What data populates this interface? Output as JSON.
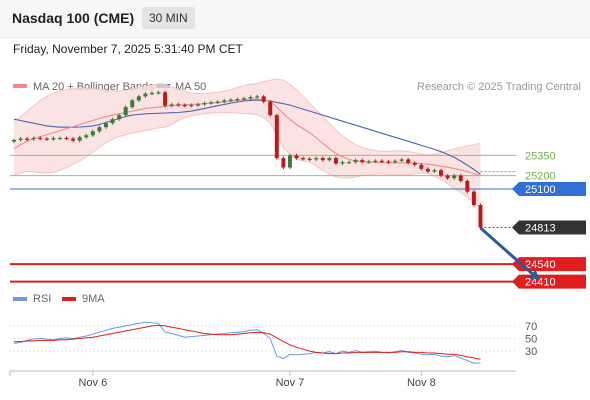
{
  "header": {
    "title": "Nasdaq 100 (CME)",
    "timeframe": "30 MIN"
  },
  "datetime": "Friday, November 7, 2025 5:31:40 PM CET",
  "legend": {
    "ma20_bb": "MA 20 + Bollinger Bands",
    "ma50": "MA 50",
    "rsi": "RSI",
    "ma9": "9MA",
    "copyright": "Research © 2025 Trading Central"
  },
  "colors": {
    "bb_fill": "#fadcdc",
    "ma20": "#f08a8a",
    "ma50": "#4a66b0",
    "candle_up": "#3a7a3a",
    "candle_down": "#c01818",
    "green_level": "#8fc470",
    "blue_level": "#2f6fd6",
    "red_level": "#e01e1e",
    "current": "#333333",
    "rsi": "#6b9ae0",
    "rsi_ma": "#e01e1e",
    "arrow": "#2a5aa0"
  },
  "chart_data": [
    {
      "type": "candlestick",
      "ylim": [
        24385,
        25800
      ],
      "x_labels": [
        "Nov 6",
        "Nov 7",
        "Nov 8"
      ],
      "x_label_index": [
        12,
        42,
        62
      ],
      "levels": [
        {
          "label": "25350",
          "value": 25350,
          "kind": "resistance"
        },
        {
          "label": "25200",
          "value": 25200,
          "kind": "resistance"
        },
        {
          "label": "25100",
          "value": 25100,
          "kind": "pivot"
        },
        {
          "label": "24540",
          "value": 24540,
          "kind": "support"
        },
        {
          "label": "24410",
          "value": 24410,
          "kind": "support"
        }
      ],
      "current": {
        "label": "24813",
        "value": 24813
      },
      "arrow": {
        "from": [
          71,
          24810
        ],
        "to": [
          80,
          24420
        ]
      },
      "close": [
        25465,
        25475,
        25470,
        25480,
        25475,
        25470,
        25480,
        25480,
        25475,
        25460,
        25485,
        25500,
        25530,
        25560,
        25590,
        25620,
        25650,
        25710,
        25760,
        25790,
        25810,
        25815,
        25820,
        25720,
        25730,
        25725,
        25720,
        25725,
        25730,
        25740,
        25745,
        25750,
        25760,
        25765,
        25770,
        25775,
        25785,
        25790,
        25750,
        25650,
        25330,
        25260,
        25350,
        25330,
        25325,
        25320,
        25330,
        25315,
        25330,
        25290,
        25300,
        25300,
        25315,
        25300,
        25305,
        25310,
        25305,
        25300,
        25310,
        25320,
        25295,
        25280,
        25250,
        25230,
        25240,
        25200,
        25180,
        25200,
        25160,
        25080,
        24980,
        24813
      ],
      "ma20": [
        25400,
        25430,
        25455,
        25475,
        25490,
        25505,
        25520,
        25535,
        25550,
        25565,
        25580,
        25595,
        25610,
        25625,
        25640,
        25650,
        25660,
        25670,
        25680,
        25690,
        25700,
        25705,
        25710,
        25715,
        25720,
        25725,
        25728,
        25730,
        25732,
        25735,
        25740,
        25745,
        25750,
        25755,
        25760,
        25765,
        25770,
        25770,
        25765,
        25750,
        25710,
        25660,
        25620,
        25580,
        25550,
        25520,
        25480,
        25440,
        25400,
        25365,
        25340,
        25320,
        25310,
        25305,
        25300,
        25298,
        25296,
        25295,
        25295,
        25295,
        25294,
        25292,
        25290,
        25285,
        25278,
        25270,
        25262,
        25252,
        25242,
        25230,
        25215,
        25200
      ],
      "bb_upper": [
        25600,
        25640,
        25680,
        25720,
        25760,
        25790,
        25815,
        25830,
        25840,
        25845,
        25850,
        25850,
        25845,
        25840,
        25835,
        25830,
        25830,
        25835,
        25845,
        25855,
        25865,
        25875,
        25885,
        25880,
        25860,
        25840,
        25825,
        25815,
        25810,
        25810,
        25815,
        25820,
        25830,
        25840,
        25855,
        25870,
        25880,
        25885,
        25900,
        25910,
        25920,
        25910,
        25880,
        25840,
        25790,
        25740,
        25690,
        25640,
        25590,
        25540,
        25495,
        25460,
        25430,
        25410,
        25395,
        25385,
        25380,
        25380,
        25385,
        25385,
        25380,
        25370,
        25360,
        25355,
        25360,
        25370,
        25385,
        25400,
        25410,
        25420,
        25430,
        25440
      ],
      "bb_lower": [
        25200,
        25220,
        25230,
        25230,
        25220,
        25220,
        25225,
        25240,
        25260,
        25285,
        25310,
        25340,
        25375,
        25410,
        25445,
        25470,
        25490,
        25505,
        25515,
        25525,
        25535,
        25545,
        25555,
        25560,
        25580,
        25610,
        25630,
        25645,
        25654,
        25660,
        25665,
        25670,
        25670,
        25670,
        25665,
        25660,
        25660,
        25655,
        25630,
        25590,
        25500,
        25410,
        25360,
        25320,
        25310,
        25300,
        25270,
        25240,
        25210,
        25190,
        25185,
        25180,
        25190,
        25200,
        25205,
        25211,
        25212,
        25210,
        25205,
        25205,
        25208,
        25214,
        25220,
        25215,
        25196,
        25170,
        25139,
        25104,
        25074,
        25040,
        25000,
        24960
      ],
      "ma50": [
        25620,
        25610,
        25600,
        25590,
        25580,
        25570,
        25565,
        25560,
        25560,
        25560,
        25562,
        25565,
        25570,
        25580,
        25595,
        25610,
        25625,
        25640,
        25650,
        25655,
        25660,
        25662,
        25664,
        25666,
        25668,
        25670,
        25675,
        25680,
        25690,
        25700,
        25710,
        25720,
        25730,
        25740,
        25748,
        25755,
        25760,
        25762,
        25760,
        25755,
        25745,
        25735,
        25725,
        25710,
        25695,
        25680,
        25665,
        25650,
        25635,
        25620,
        25605,
        25590,
        25575,
        25560,
        25545,
        25530,
        25515,
        25500,
        25485,
        25470,
        25455,
        25440,
        25425,
        25410,
        25395,
        25378,
        25358,
        25335,
        25308,
        25278,
        25245,
        25210
      ]
    },
    {
      "type": "line",
      "ylim": [
        0,
        100
      ],
      "ticks": [
        {
          "label": "70",
          "value": 70
        },
        {
          "label": "50",
          "value": 50
        },
        {
          "label": "30",
          "value": 30
        }
      ],
      "series": [
        {
          "name": "RSI",
          "values": [
            42,
            44,
            47,
            49,
            50,
            49,
            48,
            50,
            51,
            50,
            52,
            54,
            57,
            60,
            63,
            66,
            68,
            70,
            72,
            74,
            76,
            75,
            74,
            60,
            58,
            55,
            52,
            53,
            54,
            55,
            56,
            57,
            58,
            59,
            60,
            61,
            63,
            64,
            58,
            50,
            22,
            18,
            25,
            24,
            25,
            26,
            28,
            27,
            29,
            26,
            30,
            28,
            31,
            28,
            29,
            30,
            28,
            27,
            29,
            31,
            28,
            27,
            25,
            24,
            25,
            22,
            21,
            23,
            19,
            15,
            11,
            11
          ]
        },
        {
          "name": "9MA",
          "values": [
            45,
            45,
            46,
            46,
            47,
            47,
            47,
            48,
            48,
            49,
            50,
            51,
            52,
            54,
            56,
            58,
            60,
            62,
            64,
            66,
            68,
            70,
            71,
            70,
            68,
            66,
            64,
            62,
            60,
            58,
            57,
            56,
            56,
            56,
            57,
            58,
            59,
            60,
            59,
            57,
            51,
            45,
            40,
            36,
            33,
            30,
            28,
            27,
            26,
            26,
            27,
            27,
            28,
            28,
            28,
            28,
            28,
            28,
            28,
            29,
            29,
            28,
            28,
            27,
            27,
            26,
            25,
            25,
            23,
            21,
            19,
            17
          ]
        }
      ]
    }
  ]
}
